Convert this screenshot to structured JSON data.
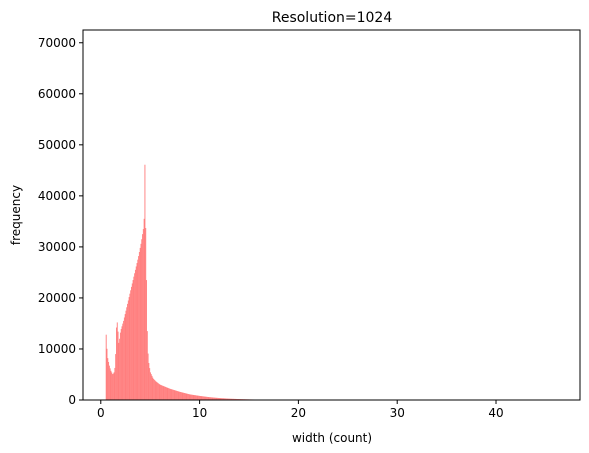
{
  "chart_data": {
    "type": "bar",
    "title": "Resolution=1024",
    "xlabel": "width (count)",
    "ylabel": "frequency",
    "xlim": [
      -1.8,
      48.5
    ],
    "ylim": [
      0,
      72500
    ],
    "x_ticks": [
      0,
      10,
      20,
      30,
      40
    ],
    "y_ticks": [
      0,
      10000,
      20000,
      30000,
      40000,
      50000,
      60000,
      70000
    ],
    "grid": false,
    "bar_color": "#ff7f7f",
    "bin_width": 0.08,
    "profile": [
      [
        0.5,
        0
      ],
      [
        0.55,
        16000
      ],
      [
        0.6,
        10500
      ],
      [
        0.7,
        8200
      ],
      [
        0.85,
        6800
      ],
      [
        1.0,
        5800
      ],
      [
        1.2,
        5000
      ],
      [
        1.4,
        5600
      ],
      [
        1.5,
        9000
      ],
      [
        1.6,
        15500
      ],
      [
        1.7,
        15000
      ],
      [
        1.8,
        11000
      ],
      [
        1.9,
        12000
      ],
      [
        2.0,
        13500
      ],
      [
        2.3,
        15500
      ],
      [
        2.6,
        18000
      ],
      [
        2.9,
        20500
      ],
      [
        3.2,
        23000
      ],
      [
        3.5,
        25500
      ],
      [
        3.8,
        28000
      ],
      [
        4.1,
        31000
      ],
      [
        4.3,
        33500
      ],
      [
        4.4,
        36000
      ],
      [
        4.45,
        49000
      ],
      [
        4.5,
        34500
      ],
      [
        4.55,
        33500
      ],
      [
        4.6,
        26000
      ],
      [
        4.7,
        13500
      ],
      [
        4.8,
        8000
      ],
      [
        5.0,
        5500
      ],
      [
        5.3,
        4200
      ],
      [
        5.6,
        3600
      ],
      [
        6.0,
        3000
      ],
      [
        6.5,
        2600
      ],
      [
        7.0,
        2200
      ],
      [
        8.0,
        1600
      ],
      [
        9.0,
        1100
      ],
      [
        10.0,
        800
      ],
      [
        11.0,
        550
      ],
      [
        12.0,
        380
      ],
      [
        13.0,
        260
      ],
      [
        14.0,
        180
      ],
      [
        15.0,
        120
      ],
      [
        16.0,
        80
      ],
      [
        16.5,
        60
      ],
      [
        17.0,
        0
      ],
      [
        20.0,
        0
      ],
      [
        46.5,
        0
      ]
    ]
  }
}
